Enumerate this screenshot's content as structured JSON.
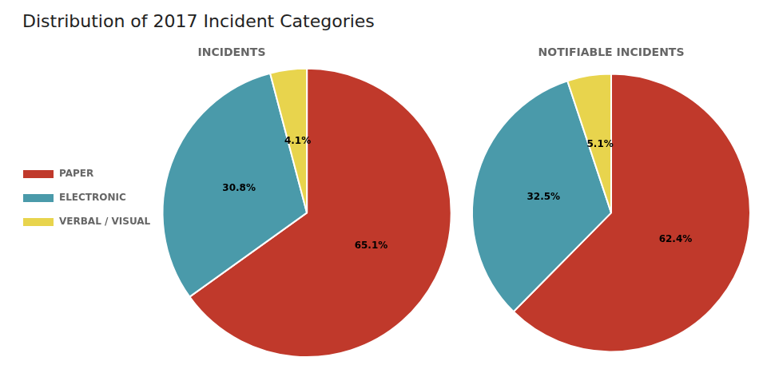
{
  "title": "Distribution of 2017 Incident Categories",
  "chart_data": [
    {
      "type": "pie",
      "title": "INCIDENTS",
      "categories": [
        "PAPER",
        "ELECTRONIC",
        "VERBAL / VISUAL"
      ],
      "values": [
        65.1,
        30.8,
        4.1
      ],
      "value_labels": [
        "65.1%",
        "30.8%",
        "4.1%"
      ],
      "colors": [
        "#c0392b",
        "#4a9aaa",
        "#e8d44d"
      ],
      "data_labels": true,
      "legend": "left"
    },
    {
      "type": "pie",
      "title": "NOTIFIABLE INCIDENTS",
      "categories": [
        "PAPER",
        "ELECTRONIC",
        "VERBAL / VISUAL"
      ],
      "values": [
        62.4,
        32.5,
        5.1
      ],
      "value_labels": [
        "62.4%",
        "32.5%",
        "5.1%"
      ],
      "colors": [
        "#c0392b",
        "#4a9aaa",
        "#e8d44d"
      ],
      "data_labels": true
    }
  ]
}
